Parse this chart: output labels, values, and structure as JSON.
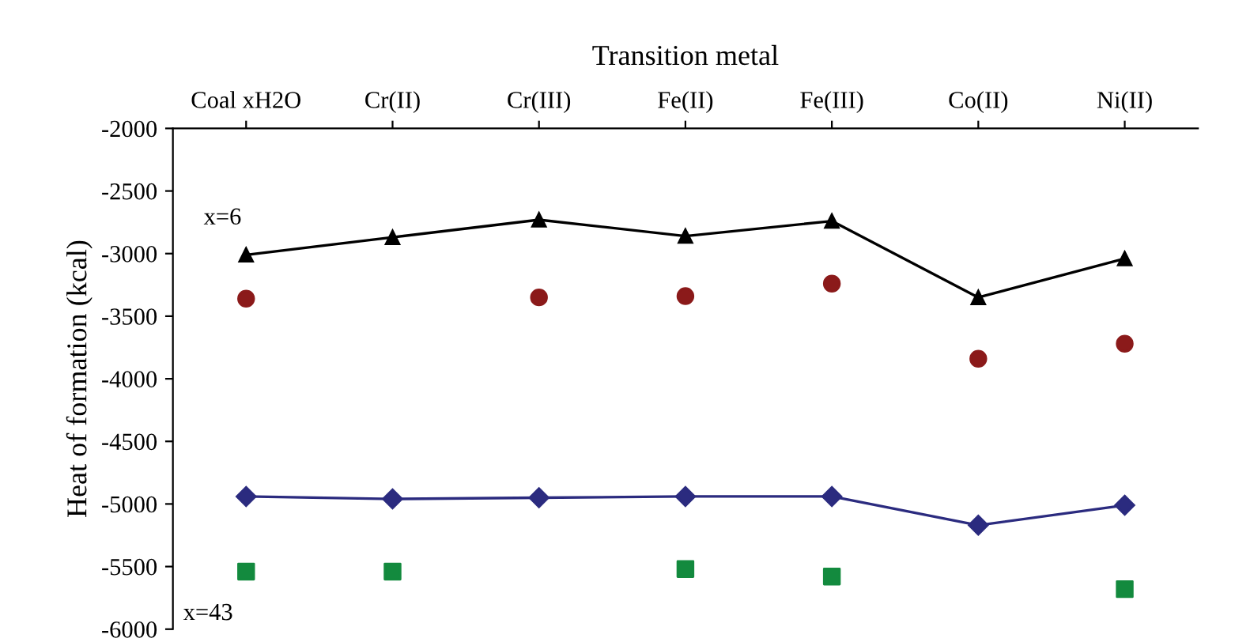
{
  "chart_data": {
    "type": "line",
    "xlabel": "Transition metal",
    "ylabel": "Heat of formation (kcal)",
    "categories": [
      "Coal xH2O",
      "Cr(II)",
      "Cr(III)",
      "Fe(II)",
      "Fe(III)",
      "Co(II)",
      "Ni(II)"
    ],
    "ylim": [
      -6000,
      -2000
    ],
    "yticks": [
      -2000,
      -2500,
      -3000,
      -3500,
      -4000,
      -4500,
      -5000,
      -5500,
      -6000
    ],
    "grid": false,
    "legend": false,
    "series": [
      {
        "color": "#000000",
        "marker": "triangle",
        "values": [
          -3010,
          -2870,
          -2730,
          -2860,
          -2740,
          -3350,
          -3040
        ]
      },
      {
        "type": "scatter",
        "color": "#8b1a1a",
        "marker": "circle",
        "values": [
          -3360,
          null,
          -3350,
          -3340,
          -3240,
          -3840,
          -3720
        ]
      },
      {
        "color": "#2b2b7f",
        "marker": "diamond",
        "values": [
          -4940,
          -4960,
          -4950,
          -4940,
          -4940,
          -5170,
          -5010
        ]
      },
      {
        "type": "scatter",
        "color": "#138a3e",
        "marker": "square",
        "values": [
          -5540,
          -5540,
          null,
          -5520,
          -5580,
          null,
          -5680
        ]
      }
    ],
    "annotations": [
      "x=6",
      "x=43"
    ]
  }
}
